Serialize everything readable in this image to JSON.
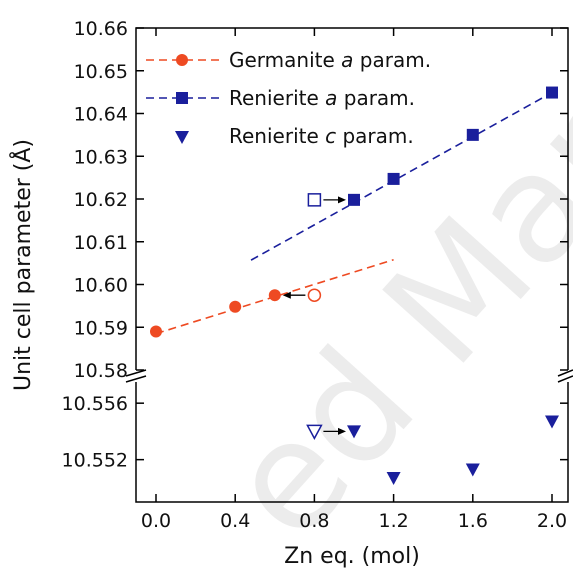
{
  "chart_data": {
    "type": "scatter",
    "xlabel": "Zn eq. (mol)",
    "ylabel": "Unit cell parameter (Å)",
    "xlim": [
      -0.08,
      2.08
    ],
    "x_ticks": [
      "0.0",
      "0.4",
      "0.8",
      "1.2",
      "1.6",
      "2.0"
    ],
    "x_tick_values": [
      0.0,
      0.4,
      0.8,
      1.2,
      1.6,
      2.0
    ],
    "broken_y_axis": true,
    "upper_panel": {
      "ylim": [
        10.58,
        10.66
      ],
      "y_ticks": [
        "10.58",
        "10.59",
        "10.60",
        "10.61",
        "10.62",
        "10.63",
        "10.64",
        "10.65",
        "10.66"
      ],
      "y_tick_values": [
        10.58,
        10.59,
        10.6,
        10.61,
        10.62,
        10.63,
        10.64,
        10.65,
        10.66
      ]
    },
    "lower_panel": {
      "ylim": [
        10.549,
        10.5575
      ],
      "y_ticks": [
        "10.552",
        "10.556"
      ],
      "y_tick_values": [
        10.552,
        10.556
      ]
    },
    "legend": {
      "placement": "top-left",
      "entries": [
        {
          "prefix": "Germanite ",
          "italic": "a",
          "suffix": " param."
        },
        {
          "prefix": "Renierite ",
          "italic": "a",
          "suffix": " param."
        },
        {
          "prefix": "Renierite ",
          "italic": "c",
          "suffix": " param."
        }
      ]
    },
    "series": [
      {
        "name": "Germanite a param.",
        "marker": "circle",
        "color": "#ee4a22",
        "panel": "upper",
        "points": [
          {
            "x": 0.0,
            "y": 10.589
          },
          {
            "x": 0.4,
            "y": 10.5948
          },
          {
            "x": 0.6,
            "y": 10.5975
          }
        ],
        "open_points": [
          {
            "x": 0.8,
            "y": 10.5975
          }
        ],
        "fit": {
          "x": [
            0.0,
            1.2
          ],
          "y": [
            10.5885,
            10.6058
          ]
        }
      },
      {
        "name": "Renierite a param.",
        "marker": "square",
        "color": "#1a1f9c",
        "panel": "upper",
        "points": [
          {
            "x": 1.0,
            "y": 10.6198
          },
          {
            "x": 1.2,
            "y": 10.6247
          },
          {
            "x": 1.6,
            "y": 10.635
          },
          {
            "x": 2.0,
            "y": 10.6449
          }
        ],
        "open_points": [
          {
            "x": 0.8,
            "y": 10.6198
          }
        ],
        "fit": {
          "x": [
            0.48,
            2.0
          ],
          "y": [
            10.6057,
            10.6449
          ]
        }
      },
      {
        "name": "Renierite c param.",
        "marker": "triangle-down",
        "color": "#1a1f9c",
        "panel": "lower",
        "points": [
          {
            "x": 1.0,
            "y": 10.554
          },
          {
            "x": 1.2,
            "y": 10.5507
          },
          {
            "x": 1.6,
            "y": 10.5513
          },
          {
            "x": 2.0,
            "y": 10.5547
          }
        ],
        "open_points": [
          {
            "x": 0.8,
            "y": 10.554
          }
        ]
      }
    ],
    "arrows": [
      {
        "from": {
          "x": 0.8,
          "y": 10.6198
        },
        "to": {
          "x": 1.0,
          "y": 10.6198
        },
        "panel": "upper"
      },
      {
        "from": {
          "x": 0.8,
          "y": 10.5975
        },
        "to": {
          "x": 0.6,
          "y": 10.5975
        },
        "panel": "upper"
      },
      {
        "from": {
          "x": 0.8,
          "y": 10.554
        },
        "to": {
          "x": 1.0,
          "y": 10.554
        },
        "panel": "lower"
      }
    ]
  }
}
